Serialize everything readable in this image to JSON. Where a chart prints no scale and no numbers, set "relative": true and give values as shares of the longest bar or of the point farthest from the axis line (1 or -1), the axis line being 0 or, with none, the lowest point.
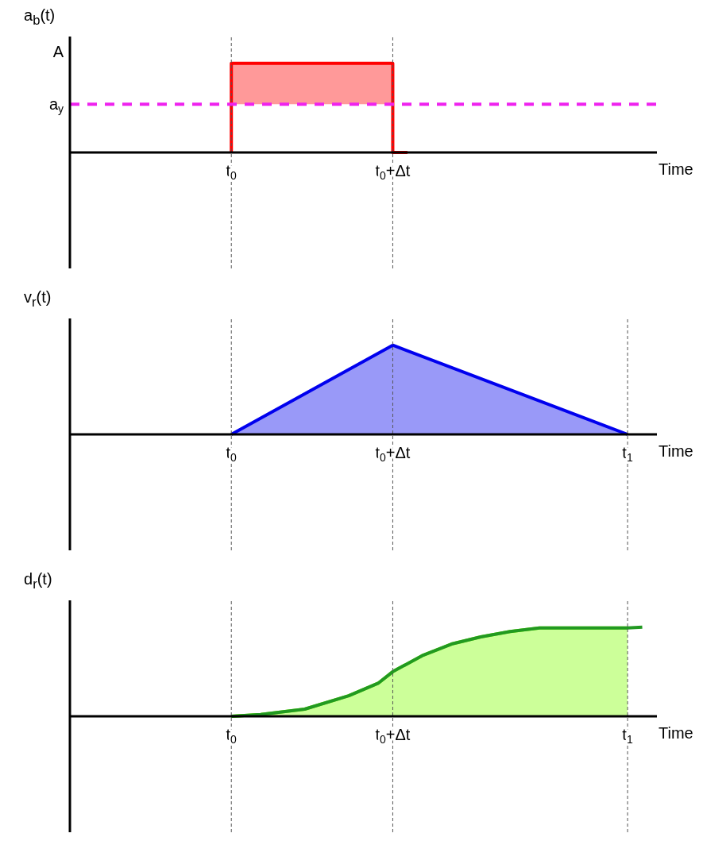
{
  "chart_data": [
    {
      "type": "step",
      "relative": true,
      "ylabel": "a$_{b}$(t)",
      "xlabel": "Time",
      "categories": [
        null,
        null,
        null,
        null,
        null,
        null,
        null,
        null,
        null,
        null,
        null,
        "t$_{0}$",
        null,
        null,
        null,
        null,
        null,
        null,
        null,
        null,
        null,
        null,
        "t$_{0}$+Δt",
        null,
        null,
        null,
        null,
        null,
        null,
        null,
        null,
        null,
        null,
        null,
        null,
        null,
        null,
        null,
        null,
        null,
        null
      ],
      "series": [
        {
          "color": "#ff0000",
          "values": [
            null,
            null,
            null,
            null,
            null,
            null,
            null,
            null,
            null,
            null,
            null,
            0,
            1,
            1,
            1,
            1,
            1,
            1,
            1,
            1,
            1,
            1,
            1,
            0,
            null,
            null,
            null,
            null,
            null,
            null,
            null,
            null,
            null,
            null,
            null,
            null,
            null,
            null,
            null,
            null,
            null
          ],
          "lower": [
            null,
            null,
            null,
            null,
            null,
            null,
            null,
            null,
            null,
            null,
            null,
            0.54,
            0.54,
            0.54,
            0.54,
            0.54,
            0.54,
            0.54,
            0.54,
            0.54,
            0.54,
            0.54,
            0.54,
            null,
            null,
            null,
            null,
            null,
            null,
            null,
            null,
            null,
            null,
            null,
            null,
            null,
            null,
            null,
            null,
            null,
            null
          ],
          "upper": [
            null,
            null,
            null,
            null,
            null,
            null,
            null,
            null,
            null,
            null,
            null,
            1,
            1,
            1,
            1,
            1,
            1,
            1,
            1,
            1,
            1,
            1,
            1,
            null,
            null,
            null,
            null,
            null,
            null,
            null,
            null,
            null,
            null,
            null,
            null,
            null,
            null,
            null,
            null,
            null,
            null
          ]
        }
      ],
      "annotations": [
        "A"
      ],
      "ref_lines": [
        {
          "axis": "y",
          "value": 0.54,
          "label": "a$_{y}$",
          "color": "#ee22ee",
          "line_style": "dashed"
        },
        {
          "axis": "x",
          "value": "t$_{0}$",
          "color": "#555555",
          "line_style": "dashed"
        },
        {
          "axis": "x",
          "value": "t$_{0}$+Δt",
          "color": "#555555",
          "line_style": "dashed"
        }
      ],
      "grid": false,
      "legend": false
    },
    {
      "type": "area",
      "relative": true,
      "ylabel": "v$_{r}$(t)",
      "xlabel": "Time",
      "categories": [
        null,
        null,
        null,
        null,
        null,
        null,
        null,
        null,
        null,
        null,
        null,
        "t$_{0}$",
        null,
        null,
        null,
        null,
        null,
        null,
        null,
        null,
        null,
        null,
        "t$_{0}$+Δt",
        null,
        null,
        null,
        null,
        null,
        null,
        null,
        null,
        null,
        null,
        null,
        null,
        null,
        null,
        null,
        "t$_{1}$",
        null,
        null
      ],
      "series": [
        {
          "color": "#0000ee",
          "values": [
            null,
            null,
            null,
            null,
            null,
            null,
            null,
            null,
            null,
            null,
            null,
            0,
            null,
            null,
            null,
            null,
            null,
            null,
            null,
            null,
            null,
            null,
            1,
            null,
            null,
            null,
            null,
            null,
            null,
            null,
            null,
            null,
            null,
            null,
            null,
            null,
            null,
            null,
            0,
            null,
            null
          ]
        }
      ],
      "ref_lines": [
        {
          "axis": "x",
          "value": "t$_{0}$",
          "color": "#555555",
          "line_style": "dashed"
        },
        {
          "axis": "x",
          "value": "t$_{0}$+Δt",
          "color": "#555555",
          "line_style": "dashed"
        },
        {
          "axis": "x",
          "value": "t$_{1}$",
          "color": "#555555",
          "line_style": "dashed"
        }
      ],
      "grid": false,
      "legend": false
    },
    {
      "type": "line",
      "relative": true,
      "ylabel": "d$_{r}$(t)",
      "xlabel": "Time",
      "categories": [
        null,
        null,
        null,
        null,
        null,
        null,
        null,
        null,
        null,
        null,
        null,
        "t$_{0}$",
        null,
        null,
        null,
        null,
        null,
        null,
        null,
        null,
        null,
        null,
        "t$_{0}$+Δt",
        null,
        null,
        null,
        null,
        null,
        null,
        null,
        null,
        null,
        null,
        null,
        null,
        null,
        null,
        null,
        "t$_{1}$",
        null,
        null
      ],
      "series": [
        {
          "type": "area",
          "color": "#7fff00",
          "values": [
            null,
            null,
            null,
            null,
            null,
            null,
            null,
            null,
            null,
            null,
            null,
            0,
            null,
            0.02,
            null,
            null,
            0.08,
            null,
            null,
            0.23,
            null,
            0.37,
            0.5,
            null,
            0.68,
            null,
            0.81,
            null,
            0.89,
            null,
            0.95,
            null,
            0.99,
            null,
            0.99,
            null,
            null,
            null,
            0.99,
            null,
            null
          ]
        },
        {
          "color": "#229922",
          "values": [
            null,
            null,
            null,
            null,
            null,
            null,
            null,
            null,
            null,
            null,
            null,
            0,
            null,
            0.02,
            null,
            null,
            0.08,
            null,
            null,
            0.23,
            null,
            0.37,
            0.5,
            null,
            0.68,
            null,
            0.81,
            null,
            0.89,
            null,
            0.95,
            null,
            0.99,
            null,
            0.99,
            null,
            null,
            null,
            0.99,
            1,
            null
          ]
        }
      ],
      "ref_lines": [
        {
          "axis": "x",
          "value": "t$_{0}$",
          "color": "#555555",
          "line_style": "dashed"
        },
        {
          "axis": "x",
          "value": "t$_{0}$+Δt",
          "color": "#555555",
          "line_style": "dashed"
        },
        {
          "axis": "x",
          "value": "t$_{1}$",
          "color": "#555555",
          "line_style": "dashed"
        }
      ],
      "grid": false,
      "legend": false
    }
  ]
}
